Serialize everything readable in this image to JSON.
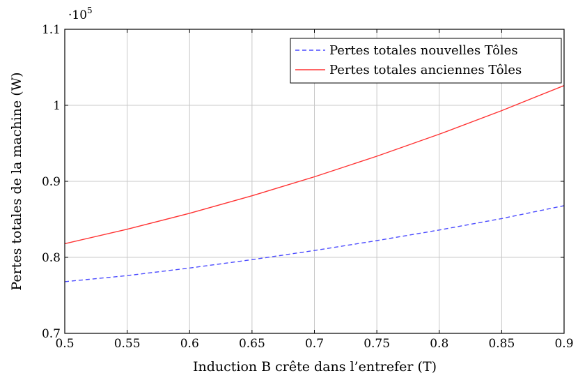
{
  "chart_data": {
    "type": "line",
    "xlabel": "Induction B crête dans l’entrefer (T)",
    "ylabel": "Pertes totales de la machine (W)",
    "y_multiplier": "·10",
    "y_multiplier_exp": "5",
    "xlim": [
      0.5,
      0.9
    ],
    "ylim": [
      0.7,
      1.1
    ],
    "x_ticks": [
      0.5,
      0.55,
      0.6,
      0.65,
      0.7,
      0.75,
      0.8,
      0.85,
      0.9
    ],
    "x_tick_labels": [
      "0.5",
      "0.55",
      "0.6",
      "0.65",
      "0.7",
      "0.75",
      "0.8",
      "0.85",
      "0.9"
    ],
    "y_ticks": [
      0.7,
      0.8,
      0.9,
      1.0,
      1.1
    ],
    "y_tick_labels": [
      "0.7",
      "0.8",
      "0.9",
      "1",
      "1.1"
    ],
    "grid": true,
    "legend_position": "top-right",
    "series": [
      {
        "name": "Pertes totales nouvelles Tôles",
        "color": "#4a4aff",
        "style": "dashed",
        "x": [
          0.5,
          0.55,
          0.6,
          0.65,
          0.7,
          0.75,
          0.8,
          0.85,
          0.9
        ],
        "y": [
          0.768,
          0.776,
          0.786,
          0.797,
          0.809,
          0.822,
          0.836,
          0.851,
          0.868
        ]
      },
      {
        "name": "Pertes totales anciennes Tôles",
        "color": "#ff3333",
        "style": "solid",
        "x": [
          0.5,
          0.55,
          0.6,
          0.65,
          0.7,
          0.75,
          0.8,
          0.85,
          0.9
        ],
        "y": [
          0.818,
          0.837,
          0.858,
          0.881,
          0.906,
          0.933,
          0.962,
          0.993,
          1.026
        ]
      }
    ]
  }
}
